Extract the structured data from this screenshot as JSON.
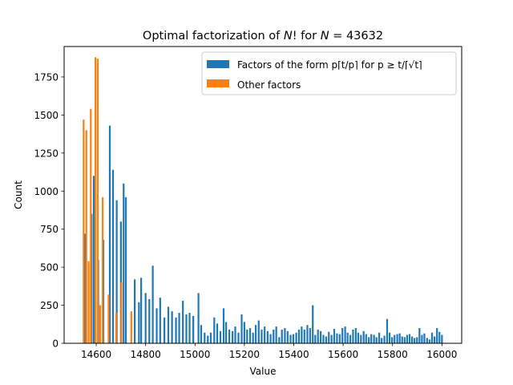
{
  "chart_data": {
    "type": "bar",
    "title": "Optimal factorization of N!  for N = 43632",
    "title_parts": {
      "prefix": "Optimal factorization of ",
      "n1": "N",
      "mid": "!  for ",
      "n2": "N",
      "eq": " = 43632"
    },
    "xlabel": "Value",
    "ylabel": "Count",
    "xlim": [
      14470,
      16080
    ],
    "ylim": [
      0,
      1950
    ],
    "x_ticks": [
      14600,
      14800,
      15000,
      15200,
      15400,
      15600,
      15800,
      16000
    ],
    "y_ticks": [
      0,
      250,
      500,
      750,
      1000,
      1250,
      1500,
      1750
    ],
    "legend_position": "top-right",
    "series": [
      {
        "name": "Factors of the form p⌈t/p⌉ for p ≥ t/⌈√t⌉",
        "color": "#1f77b4",
        "points": [
          [
            14554,
            720
          ],
          [
            14581,
            850
          ],
          [
            14590,
            1100
          ],
          [
            14608,
            550
          ],
          [
            14629,
            680
          ],
          [
            14655,
            1430
          ],
          [
            14668,
            1140
          ],
          [
            14683,
            940
          ],
          [
            14700,
            800
          ],
          [
            14711,
            1050
          ],
          [
            14720,
            960
          ],
          [
            14756,
            420
          ],
          [
            14773,
            270
          ],
          [
            14782,
            430
          ],
          [
            14800,
            330
          ],
          [
            14815,
            290
          ],
          [
            14829,
            510
          ],
          [
            14845,
            230
          ],
          [
            14859,
            300
          ],
          [
            14876,
            170
          ],
          [
            14892,
            240
          ],
          [
            14907,
            210
          ],
          [
            14923,
            170
          ],
          [
            14936,
            200
          ],
          [
            14951,
            280
          ],
          [
            14965,
            190
          ],
          [
            14978,
            200
          ],
          [
            14993,
            180
          ],
          [
            15014,
            330
          ],
          [
            15025,
            120
          ],
          [
            15039,
            70
          ],
          [
            15052,
            50
          ],
          [
            15064,
            70
          ],
          [
            15078,
            170
          ],
          [
            15090,
            130
          ],
          [
            15103,
            80
          ],
          [
            15116,
            230
          ],
          [
            15126,
            140
          ],
          [
            15139,
            90
          ],
          [
            15152,
            80
          ],
          [
            15163,
            110
          ],
          [
            15176,
            70
          ],
          [
            15189,
            190
          ],
          [
            15200,
            140
          ],
          [
            15211,
            90
          ],
          [
            15223,
            100
          ],
          [
            15235,
            70
          ],
          [
            15246,
            120
          ],
          [
            15258,
            150
          ],
          [
            15270,
            90
          ],
          [
            15282,
            110
          ],
          [
            15294,
            80
          ],
          [
            15306,
            60
          ],
          [
            15318,
            90
          ],
          [
            15329,
            110
          ],
          [
            15341,
            40
          ],
          [
            15352,
            90
          ],
          [
            15364,
            100
          ],
          [
            15375,
            80
          ],
          [
            15387,
            55
          ],
          [
            15398,
            60
          ],
          [
            15410,
            70
          ],
          [
            15421,
            90
          ],
          [
            15432,
            110
          ],
          [
            15443,
            90
          ],
          [
            15455,
            120
          ],
          [
            15466,
            100
          ],
          [
            15477,
            250
          ],
          [
            15487,
            55
          ],
          [
            15498,
            90
          ],
          [
            15509,
            80
          ],
          [
            15520,
            55
          ],
          [
            15531,
            45
          ],
          [
            15542,
            75
          ],
          [
            15553,
            55
          ],
          [
            15564,
            95
          ],
          [
            15575,
            65
          ],
          [
            15586,
            60
          ],
          [
            15597,
            100
          ],
          [
            15608,
            110
          ],
          [
            15618,
            70
          ],
          [
            15629,
            55
          ],
          [
            15640,
            90
          ],
          [
            15651,
            100
          ],
          [
            15661,
            70
          ],
          [
            15672,
            55
          ],
          [
            15683,
            80
          ],
          [
            15693,
            60
          ],
          [
            15704,
            40
          ],
          [
            15714,
            60
          ],
          [
            15725,
            55
          ],
          [
            15735,
            40
          ],
          [
            15746,
            70
          ],
          [
            15756,
            35
          ],
          [
            15767,
            50
          ],
          [
            15778,
            160
          ],
          [
            15788,
            70
          ],
          [
            15798,
            40
          ],
          [
            15808,
            55
          ],
          [
            15819,
            60
          ],
          [
            15829,
            65
          ],
          [
            15839,
            45
          ],
          [
            15849,
            40
          ],
          [
            15859,
            55
          ],
          [
            15869,
            60
          ],
          [
            15879,
            45
          ],
          [
            15889,
            35
          ],
          [
            15899,
            40
          ],
          [
            15909,
            100
          ],
          [
            15919,
            55
          ],
          [
            15929,
            65
          ],
          [
            15940,
            35
          ],
          [
            15950,
            25
          ],
          [
            15960,
            70
          ],
          [
            15970,
            45
          ],
          [
            15980,
            100
          ],
          [
            15990,
            75
          ],
          [
            16000,
            55
          ]
        ]
      },
      {
        "name": "Other factors",
        "color": "#ff7f0e",
        "points": [
          [
            14549,
            1470
          ],
          [
            14560,
            1400
          ],
          [
            14569,
            540
          ],
          [
            14578,
            1540
          ],
          [
            14597,
            1880
          ],
          [
            14606,
            1870
          ],
          [
            14616,
            250
          ],
          [
            14626,
            960
          ],
          [
            14650,
            320
          ],
          [
            14681,
            200
          ],
          [
            14702,
            400
          ],
          [
            14742,
            210
          ]
        ]
      }
    ]
  }
}
